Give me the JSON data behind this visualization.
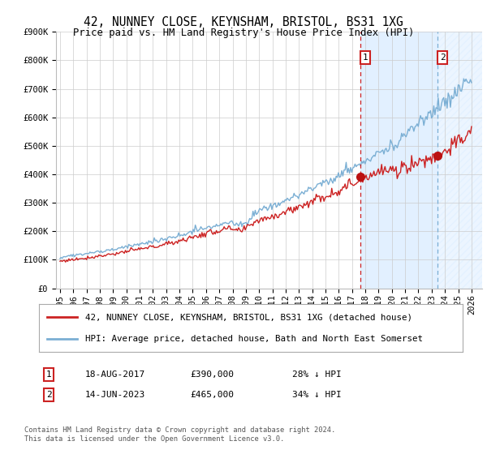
{
  "title": "42, NUNNEY CLOSE, KEYNSHAM, BRISTOL, BS31 1XG",
  "subtitle": "Price paid vs. HM Land Registry's House Price Index (HPI)",
  "ylim": [
    0,
    900000
  ],
  "xlim_start": 1994.7,
  "xlim_end": 2026.8,
  "yticks": [
    0,
    100000,
    200000,
    300000,
    400000,
    500000,
    600000,
    700000,
    800000,
    900000
  ],
  "ytick_labels": [
    "£0",
    "£100K",
    "£200K",
    "£300K",
    "£400K",
    "£500K",
    "£600K",
    "£700K",
    "£800K",
    "£900K"
  ],
  "xticks": [
    1995,
    1996,
    1997,
    1998,
    1999,
    2000,
    2001,
    2002,
    2003,
    2004,
    2005,
    2006,
    2007,
    2008,
    2009,
    2010,
    2011,
    2012,
    2013,
    2014,
    2015,
    2016,
    2017,
    2018,
    2019,
    2020,
    2021,
    2022,
    2023,
    2024,
    2025,
    2026
  ],
  "hpi_color": "#7bafd4",
  "price_color": "#cc2222",
  "marker_color": "#bb1111",
  "vline1_color": "#cc2222",
  "vline2_color": "#7bafd4",
  "shade_color": "#ddeeff",
  "sale1_x": 2017.625,
  "sale1_y": 390000,
  "sale1_label": "1",
  "sale2_x": 2023.458,
  "sale2_y": 465000,
  "sale2_label": "2",
  "legend1_text": "42, NUNNEY CLOSE, KEYNSHAM, BRISTOL, BS31 1XG (detached house)",
  "legend2_text": "HPI: Average price, detached house, Bath and North East Somerset",
  "annot1_date": "18-AUG-2017",
  "annot1_price": "£390,000",
  "annot1_hpi": "28% ↓ HPI",
  "annot2_date": "14-JUN-2023",
  "annot2_price": "£465,000",
  "annot2_hpi": "34% ↓ HPI",
  "footer": "Contains HM Land Registry data © Crown copyright and database right 2024.\nThis data is licensed under the Open Government Licence v3.0.",
  "bg_color": "#ffffff",
  "plot_bg_color": "#ffffff",
  "grid_color": "#cccccc"
}
